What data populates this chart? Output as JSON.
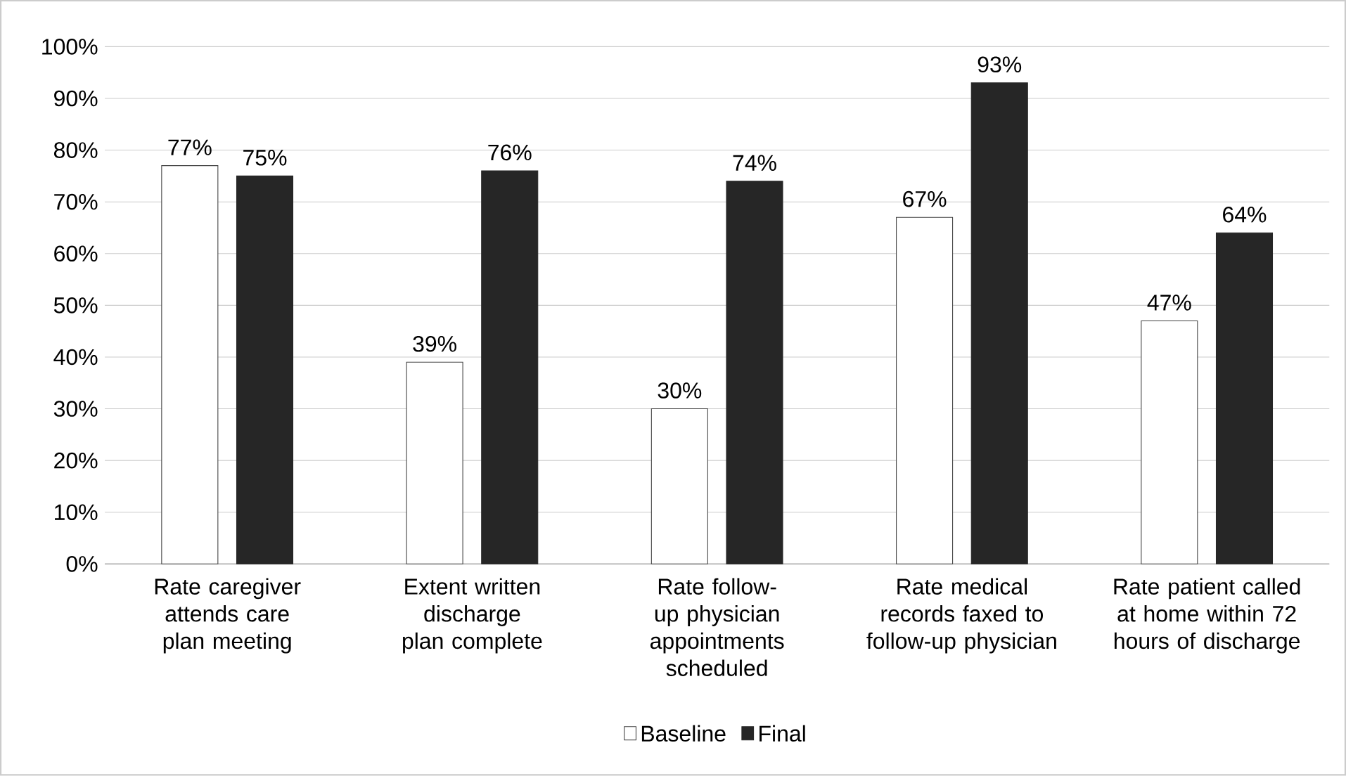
{
  "chart_data": {
    "type": "bar",
    "categories": [
      "Rate caregiver attends care plan meeting",
      "Extent written discharge plan complete",
      "Rate follow-up physician appointments scheduled",
      "Rate medical records faxed to follow-up physician",
      "Rate patient called at home within 72 hours of discharge"
    ],
    "series": [
      {
        "name": "Baseline",
        "color": "#404040",
        "values": [
          77,
          39,
          30,
          67,
          47
        ],
        "value_labels": [
          "77%",
          "39%",
          "30%",
          "67%",
          "47%"
        ]
      },
      {
        "name": "Final",
        "color": "#262626",
        "values": [
          75,
          76,
          74,
          93,
          64
        ],
        "value_labels": [
          "75%",
          "76%",
          "74%",
          "93%",
          "64%"
        ]
      }
    ],
    "ylim": [
      0,
      100
    ],
    "yticks": [
      {
        "value": 0,
        "label": "0%"
      },
      {
        "value": 10,
        "label": "10%"
      },
      {
        "value": 20,
        "label": "20%"
      },
      {
        "value": 30,
        "label": "30%"
      },
      {
        "value": 40,
        "label": "40%"
      },
      {
        "value": 50,
        "label": "50%"
      },
      {
        "value": 60,
        "label": "60%"
      },
      {
        "value": 70,
        "label": "70%"
      },
      {
        "value": 80,
        "label": "80%"
      },
      {
        "value": 90,
        "label": "90%"
      },
      {
        "value": 100,
        "label": "100%"
      }
    ],
    "grid": "y",
    "legend": "bottom"
  }
}
